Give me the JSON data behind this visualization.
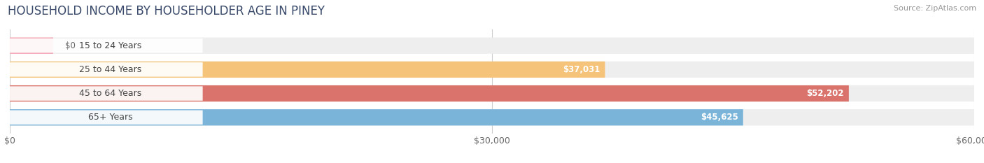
{
  "title": "HOUSEHOLD INCOME BY HOUSEHOLDER AGE IN PINEY",
  "source": "Source: ZipAtlas.com",
  "categories": [
    "15 to 24 Years",
    "25 to 44 Years",
    "45 to 64 Years",
    "65+ Years"
  ],
  "values": [
    0,
    37031,
    52202,
    45625
  ],
  "bar_colors": [
    "#f4a0b0",
    "#f5c47a",
    "#d9736b",
    "#7ab4d9"
  ],
  "bar_labels": [
    "$0",
    "$37,031",
    "$52,202",
    "$45,625"
  ],
  "xlim": [
    0,
    60000
  ],
  "xticks": [
    0,
    30000,
    60000
  ],
  "xticklabels": [
    "$0",
    "$30,000",
    "$60,000"
  ],
  "background_color": "#ffffff",
  "bar_bg_color": "#eeeeee",
  "title_fontsize": 12,
  "source_fontsize": 8,
  "label_fontsize": 8.5,
  "tick_fontsize": 9,
  "cat_fontsize": 9
}
